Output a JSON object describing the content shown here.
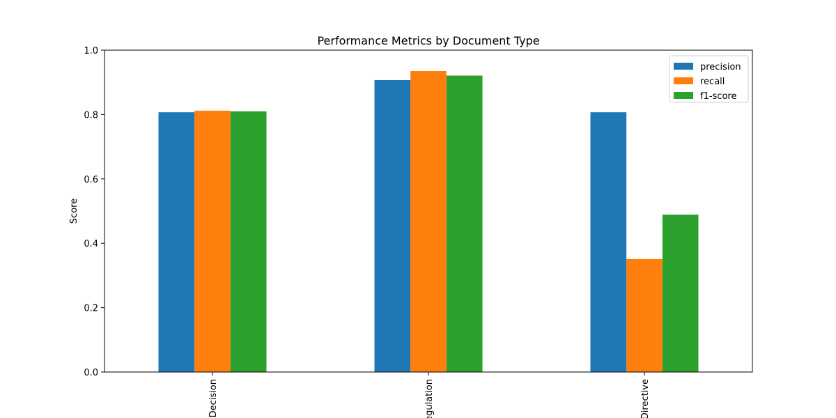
{
  "chart_data": {
    "type": "bar",
    "title": "Performance Metrics by Document Type",
    "xlabel": "",
    "ylabel": "Score",
    "ylim": [
      0,
      1.0
    ],
    "yticks": [
      "0.0",
      "0.2",
      "0.4",
      "0.6",
      "0.8",
      "1.0"
    ],
    "categories": [
      "Decision",
      "Regulation",
      "Directive"
    ],
    "series": [
      {
        "name": "precision",
        "color": "#1f77b4",
        "values": [
          0.807,
          0.907,
          0.807
        ]
      },
      {
        "name": "recall",
        "color": "#ff7f0e",
        "values": [
          0.812,
          0.935,
          0.351
        ]
      },
      {
        "name": "f1-score",
        "color": "#2ca02c",
        "values": [
          0.81,
          0.921,
          0.489
        ]
      }
    ],
    "grid": false,
    "legend_position": "top-right"
  }
}
